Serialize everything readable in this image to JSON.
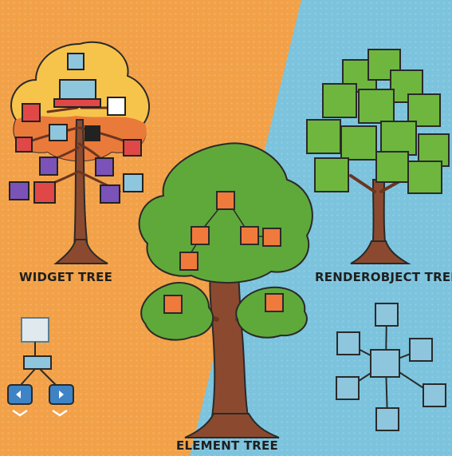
{
  "labels": {
    "widget_tree": "WIDGET TREE",
    "renderobject_tree": "RENDEROBJECT TREE",
    "element_tree": "ELEMENT TREE"
  },
  "colors": {
    "orange_bg": "#f2a148",
    "blue_bg": "#7cc3dd",
    "trunk": "#8b4a2f",
    "foliage": "#5fa93a",
    "render_cube": "#6fb63f",
    "element_cube": "#f07a3c",
    "widget_red": "#e04848",
    "widget_purple": "#7b52b8",
    "node_blue": "#8ec6dd"
  },
  "icons": [
    "widget-tree-icon",
    "element-tree-icon",
    "renderobject-tree-icon",
    "widget-stack-icon",
    "render-network-icon"
  ]
}
